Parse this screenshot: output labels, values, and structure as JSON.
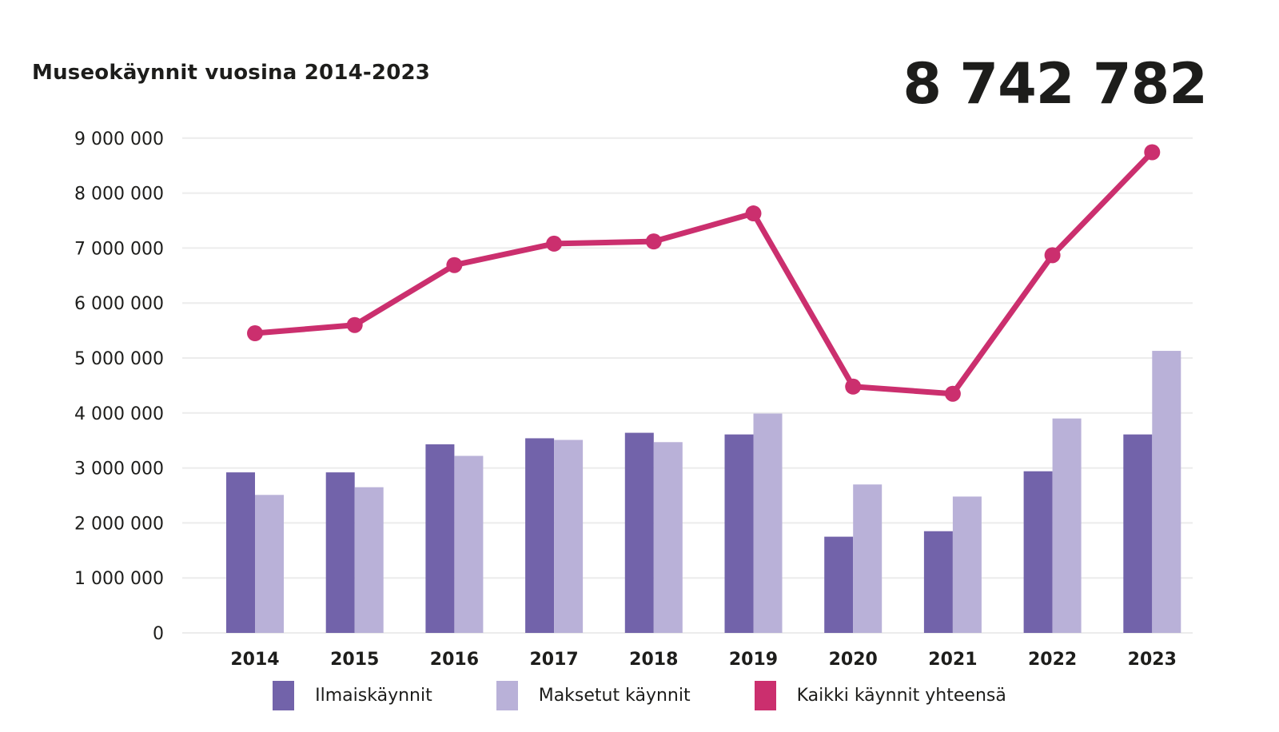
{
  "header": {
    "title": "Museokäynnit vuosina 2014-2023",
    "headline_value": "8 742 782"
  },
  "chart_data": {
    "type": "combo-grouped-bar-and-line",
    "title": "Museokäynnit vuosina 2014-2023",
    "headline_value": "8 742 782",
    "categories": [
      "2014",
      "2015",
      "2016",
      "2017",
      "2018",
      "2019",
      "2020",
      "2021",
      "2022",
      "2023"
    ],
    "series": [
      {
        "name": "Ilmaiskäynnit",
        "type": "bar",
        "color": "#7263aa",
        "values": [
          2920000,
          2920000,
          3430000,
          3540000,
          3640000,
          3610000,
          1750000,
          1850000,
          2940000,
          3610000
        ]
      },
      {
        "name": "Maksetut käynnit",
        "type": "bar",
        "color": "#b9b1d8",
        "values": [
          2510000,
          2650000,
          3220000,
          3510000,
          3470000,
          3990000,
          2700000,
          2480000,
          3900000,
          5130000
        ]
      },
      {
        "name": "Kaikki käynnit yhteensä",
        "type": "line",
        "color": "#cb2f6e",
        "values": [
          5450000,
          5600000,
          6690000,
          7080000,
          7120000,
          7630000,
          4480000,
          4350000,
          6870000,
          8742782
        ]
      }
    ],
    "ylabel": "",
    "xlabel": "",
    "ylim": [
      0,
      9000000
    ],
    "yticks": [
      "0",
      "1 000 000",
      "2 000 000",
      "3 000 000",
      "4 000 000",
      "5 000 000",
      "6 000 000",
      "7 000 000",
      "8 000 000",
      "9 000 000"
    ],
    "grid": true,
    "legend_position": "bottom"
  },
  "theme": {
    "background": "#ffffff",
    "text_color": "#1d1d1b",
    "grid_color": "#ececec"
  }
}
